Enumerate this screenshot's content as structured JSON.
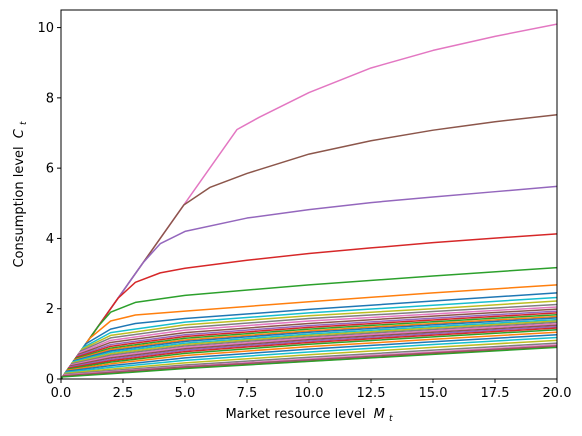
{
  "chart_data": {
    "type": "line",
    "xlabel_main": "Market resource level",
    "xlabel_sym": "M",
    "xlabel_sub": "t",
    "ylabel_main": "Consumption level",
    "ylabel_sym": "C",
    "ylabel_sub": "t",
    "xlim": [
      0,
      20
    ],
    "ylim": [
      0,
      10.5
    ],
    "xticks": [
      0,
      2.5,
      5,
      7.5,
      10,
      12.5,
      15,
      17.5,
      20
    ],
    "xtick_labels": [
      "0.0",
      "2.5",
      "5.0",
      "7.5",
      "10.0",
      "12.5",
      "15.0",
      "17.5",
      "20.0"
    ],
    "yticks": [
      0,
      2,
      4,
      6,
      8,
      10
    ],
    "ytick_labels": [
      "0",
      "2",
      "4",
      "6",
      "8",
      "10"
    ],
    "grid": false,
    "legend": "none",
    "series_note_values_in_data_units": true,
    "series": [
      {
        "color": "#e377c2",
        "points": [
          [
            0,
            0
          ],
          [
            7.1,
            7.1
          ],
          [
            8,
            7.45
          ],
          [
            10,
            8.15
          ],
          [
            12.5,
            8.85
          ],
          [
            15,
            9.35
          ],
          [
            17.5,
            9.75
          ],
          [
            20,
            10.1
          ]
        ]
      },
      {
        "color": "#8c564b",
        "points": [
          [
            0,
            0
          ],
          [
            4.95,
            4.95
          ],
          [
            6,
            5.45
          ],
          [
            7.5,
            5.85
          ],
          [
            10,
            6.4
          ],
          [
            12.5,
            6.78
          ],
          [
            15,
            7.08
          ],
          [
            17.5,
            7.32
          ],
          [
            20,
            7.52
          ]
        ]
      },
      {
        "color": "#9467bd",
        "points": [
          [
            0,
            0
          ],
          [
            3.3,
            3.3
          ],
          [
            4,
            3.85
          ],
          [
            5,
            4.2
          ],
          [
            7.5,
            4.58
          ],
          [
            10,
            4.82
          ],
          [
            12.5,
            5.02
          ],
          [
            15,
            5.18
          ],
          [
            17.5,
            5.33
          ],
          [
            20,
            5.48
          ]
        ]
      },
      {
        "color": "#d62728",
        "points": [
          [
            0,
            0
          ],
          [
            2.3,
            2.3
          ],
          [
            3,
            2.75
          ],
          [
            4,
            3.02
          ],
          [
            5,
            3.15
          ],
          [
            7.5,
            3.38
          ],
          [
            10,
            3.57
          ],
          [
            12.5,
            3.73
          ],
          [
            15,
            3.88
          ],
          [
            17.5,
            4.01
          ],
          [
            20,
            4.13
          ]
        ]
      },
      {
        "color": "#2ca02c",
        "points": [
          [
            0,
            0
          ],
          [
            1.5,
            1.5
          ],
          [
            2,
            1.9
          ],
          [
            3,
            2.18
          ],
          [
            5,
            2.38
          ],
          [
            10,
            2.68
          ],
          [
            15,
            2.93
          ],
          [
            20,
            3.17
          ]
        ]
      },
      {
        "color": "#ff7f0e",
        "points": [
          [
            0,
            0
          ],
          [
            1.15,
            1.15
          ],
          [
            2,
            1.65
          ],
          [
            3,
            1.82
          ],
          [
            5,
            1.93
          ],
          [
            10,
            2.2
          ],
          [
            15,
            2.45
          ],
          [
            20,
            2.68
          ]
        ]
      },
      {
        "color": "#1f77b4",
        "points": [
          [
            0,
            0
          ],
          [
            1,
            1.0
          ],
          [
            2,
            1.42
          ],
          [
            3,
            1.58
          ],
          [
            5,
            1.72
          ],
          [
            10,
            1.98
          ],
          [
            15,
            2.22
          ],
          [
            20,
            2.45
          ]
        ]
      },
      {
        "color": "#17becf",
        "points": [
          [
            0,
            0
          ],
          [
            0.9,
            0.9
          ],
          [
            2,
            1.32
          ],
          [
            5,
            1.62
          ],
          [
            10,
            1.88
          ],
          [
            15,
            2.1
          ],
          [
            20,
            2.32
          ]
        ]
      },
      {
        "color": "#bcbd22",
        "points": [
          [
            0,
            0
          ],
          [
            0.85,
            0.85
          ],
          [
            2,
            1.24
          ],
          [
            5,
            1.54
          ],
          [
            10,
            1.8
          ],
          [
            15,
            2.0
          ],
          [
            20,
            2.22
          ]
        ]
      },
      {
        "color": "#7f7f7f",
        "points": [
          [
            0,
            0
          ],
          [
            0.8,
            0.8
          ],
          [
            2,
            1.17
          ],
          [
            5,
            1.46
          ],
          [
            10,
            1.72
          ],
          [
            15,
            1.92
          ],
          [
            20,
            2.12
          ]
        ]
      },
      {
        "color": "#e377c2",
        "points": [
          [
            0,
            0
          ],
          [
            0.75,
            0.75
          ],
          [
            2,
            1.1
          ],
          [
            5,
            1.39
          ],
          [
            10,
            1.65
          ],
          [
            15,
            1.85
          ],
          [
            20,
            2.05
          ]
        ]
      },
      {
        "color": "#8c564b",
        "points": [
          [
            0,
            0
          ],
          [
            0.7,
            0.7
          ],
          [
            2,
            1.04
          ],
          [
            5,
            1.32
          ],
          [
            10,
            1.58
          ],
          [
            15,
            1.79
          ],
          [
            20,
            1.99
          ]
        ]
      },
      {
        "color": "#9467bd",
        "points": [
          [
            0,
            0
          ],
          [
            0.66,
            0.66
          ],
          [
            2,
            0.98
          ],
          [
            5,
            1.26
          ],
          [
            10,
            1.52
          ],
          [
            15,
            1.73
          ],
          [
            20,
            1.93
          ]
        ]
      },
      {
        "color": "#d62728",
        "points": [
          [
            0,
            0
          ],
          [
            0.62,
            0.62
          ],
          [
            2,
            0.93
          ],
          [
            5,
            1.21
          ],
          [
            10,
            1.47
          ],
          [
            15,
            1.68
          ],
          [
            20,
            1.88
          ]
        ]
      },
      {
        "color": "#2ca02c",
        "points": [
          [
            0,
            0
          ],
          [
            0.58,
            0.58
          ],
          [
            2,
            0.88
          ],
          [
            5,
            1.16
          ],
          [
            10,
            1.42
          ],
          [
            15,
            1.63
          ],
          [
            20,
            1.83
          ]
        ]
      },
      {
        "color": "#ff7f0e",
        "points": [
          [
            0,
            0
          ],
          [
            0.55,
            0.55
          ],
          [
            2,
            0.84
          ],
          [
            5,
            1.11
          ],
          [
            10,
            1.37
          ],
          [
            15,
            1.58
          ],
          [
            20,
            1.78
          ]
        ]
      },
      {
        "color": "#1f77b4",
        "points": [
          [
            0,
            0
          ],
          [
            0.52,
            0.52
          ],
          [
            2,
            0.8
          ],
          [
            5,
            1.07
          ],
          [
            10,
            1.33
          ],
          [
            15,
            1.54
          ],
          [
            20,
            1.74
          ]
        ]
      },
      {
        "color": "#17becf",
        "points": [
          [
            0,
            0
          ],
          [
            0.49,
            0.49
          ],
          [
            2,
            0.76
          ],
          [
            5,
            1.02
          ],
          [
            10,
            1.28
          ],
          [
            15,
            1.49
          ],
          [
            20,
            1.69
          ]
        ]
      },
      {
        "color": "#bcbd22",
        "points": [
          [
            0,
            0
          ],
          [
            0.46,
            0.46
          ],
          [
            2,
            0.72
          ],
          [
            5,
            0.98
          ],
          [
            10,
            1.24
          ],
          [
            15,
            1.45
          ],
          [
            20,
            1.65
          ]
        ]
      },
      {
        "color": "#7f7f7f",
        "points": [
          [
            0,
            0
          ],
          [
            0.43,
            0.43
          ],
          [
            2,
            0.68
          ],
          [
            5,
            0.94
          ],
          [
            10,
            1.2
          ],
          [
            15,
            1.41
          ],
          [
            20,
            1.61
          ]
        ]
      },
      {
        "color": "#e377c2",
        "points": [
          [
            0,
            0
          ],
          [
            0.4,
            0.4
          ],
          [
            2,
            0.64
          ],
          [
            5,
            0.9
          ],
          [
            10,
            1.16
          ],
          [
            15,
            1.37
          ],
          [
            20,
            1.57
          ]
        ]
      },
      {
        "color": "#8c564b",
        "points": [
          [
            0,
            0
          ],
          [
            0.37,
            0.37
          ],
          [
            2,
            0.6
          ],
          [
            5,
            0.86
          ],
          [
            10,
            1.12
          ],
          [
            15,
            1.33
          ],
          [
            20,
            1.53
          ]
        ]
      },
      {
        "color": "#9467bd",
        "points": [
          [
            0,
            0
          ],
          [
            0.34,
            0.34
          ],
          [
            2,
            0.56
          ],
          [
            5,
            0.82
          ],
          [
            10,
            1.08
          ],
          [
            15,
            1.29
          ],
          [
            20,
            1.49
          ]
        ]
      },
      {
        "color": "#d62728",
        "points": [
          [
            0,
            0
          ],
          [
            0.31,
            0.31
          ],
          [
            2,
            0.52
          ],
          [
            5,
            0.78
          ],
          [
            10,
            1.04
          ],
          [
            15,
            1.25
          ],
          [
            20,
            1.45
          ]
        ]
      },
      {
        "color": "#2ca02c",
        "points": [
          [
            0,
            0
          ],
          [
            0.28,
            0.28
          ],
          [
            2,
            0.48
          ],
          [
            5,
            0.73
          ],
          [
            10,
            0.99
          ],
          [
            15,
            1.2
          ],
          [
            20,
            1.4
          ]
        ]
      },
      {
        "color": "#ff7f0e",
        "points": [
          [
            0,
            0
          ],
          [
            0.25,
            0.25
          ],
          [
            2,
            0.43
          ],
          [
            5,
            0.67
          ],
          [
            10,
            0.92
          ],
          [
            15,
            1.13
          ],
          [
            20,
            1.33
          ]
        ]
      },
      {
        "color": "#1f77b4",
        "points": [
          [
            0,
            0
          ],
          [
            0.22,
            0.22
          ],
          [
            2,
            0.38
          ],
          [
            5,
            0.6
          ],
          [
            10,
            0.85
          ],
          [
            15,
            1.06
          ],
          [
            20,
            1.26
          ]
        ]
      },
      {
        "color": "#17becf",
        "points": [
          [
            0,
            0
          ],
          [
            0.19,
            0.19
          ],
          [
            2,
            0.33
          ],
          [
            5,
            0.53
          ],
          [
            10,
            0.77
          ],
          [
            15,
            0.98
          ],
          [
            20,
            1.18
          ]
        ]
      },
      {
        "color": "#bcbd22",
        "points": [
          [
            0,
            0
          ],
          [
            0.16,
            0.16
          ],
          [
            2,
            0.28
          ],
          [
            5,
            0.46
          ],
          [
            10,
            0.69
          ],
          [
            15,
            0.9
          ],
          [
            20,
            1.1
          ]
        ]
      },
      {
        "color": "#7f7f7f",
        "points": [
          [
            0,
            0
          ],
          [
            0.13,
            0.13
          ],
          [
            2,
            0.24
          ],
          [
            5,
            0.4
          ],
          [
            10,
            0.62
          ],
          [
            15,
            0.82
          ],
          [
            20,
            1.02
          ]
        ]
      },
      {
        "color": "#e377c2",
        "points": [
          [
            0,
            0
          ],
          [
            0.11,
            0.11
          ],
          [
            2,
            0.21
          ],
          [
            5,
            0.36
          ],
          [
            10,
            0.57
          ],
          [
            15,
            0.77
          ],
          [
            20,
            0.97
          ]
        ]
      },
      {
        "color": "#8c564b",
        "points": [
          [
            0,
            0
          ],
          [
            0.09,
            0.09
          ],
          [
            2,
            0.19
          ],
          [
            5,
            0.34
          ],
          [
            10,
            0.54
          ],
          [
            15,
            0.74
          ],
          [
            20,
            0.94
          ]
        ]
      },
      {
        "color": "#9467bd",
        "points": [
          [
            0,
            0
          ],
          [
            0.08,
            0.08
          ],
          [
            2,
            0.17
          ],
          [
            5,
            0.32
          ],
          [
            10,
            0.52
          ],
          [
            15,
            0.72
          ],
          [
            20,
            0.92
          ]
        ]
      },
      {
        "color": "#d62728",
        "points": [
          [
            0,
            0
          ],
          [
            0.07,
            0.07
          ],
          [
            2,
            0.16
          ],
          [
            5,
            0.31
          ],
          [
            10,
            0.51
          ],
          [
            15,
            0.71
          ],
          [
            20,
            0.91
          ]
        ]
      },
      {
        "color": "#2ca02c",
        "points": [
          [
            0,
            0
          ],
          [
            0.06,
            0.06
          ],
          [
            2,
            0.15
          ],
          [
            5,
            0.3
          ],
          [
            10,
            0.5
          ],
          [
            15,
            0.7
          ],
          [
            20,
            0.9
          ]
        ]
      }
    ]
  }
}
